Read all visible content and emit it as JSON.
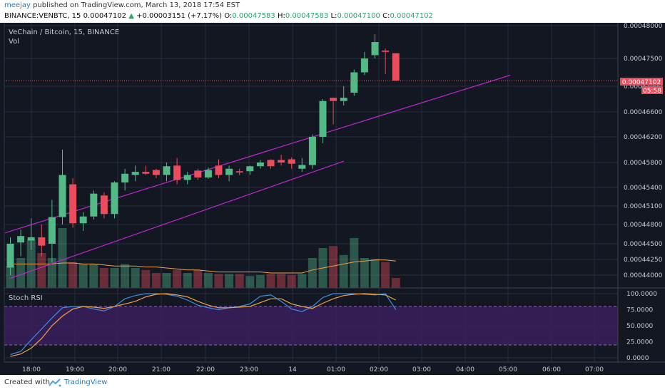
{
  "header": {
    "author": "meejay",
    "published_text": "published on TradingView.com, March 13, 2018 17:54 EST",
    "symbol_line": {
      "symbol": "BINANCE:VENBTC, 15",
      "last": "0.00047102",
      "arrow": "▲",
      "change": "+0.00003151 (+7.17%)",
      "o_label": "O:",
      "o": "0.00047583",
      "h_label": "H:",
      "h": "0.00047583",
      "l_label": "L:",
      "l": "0.00047100",
      "c_label": "C:",
      "c": "0.00047102"
    }
  },
  "chart_title": "VeChain / Bitcoin, 15, BINANCE",
  "vol_label": "Vol",
  "rsi_label": "Stoch RSI",
  "price_badge": "0.00047102",
  "time_badge": "05:58",
  "colors": {
    "bg": "#131722",
    "grid": "#262c3a",
    "up": "#53b987",
    "down": "#eb4d5c",
    "trendline": "#c026d3",
    "ma": "#f0a24a",
    "k": "#3d8fe0",
    "d": "#f0a24a",
    "rsi_band": "#3b1f5e",
    "badge": "#eb4d5c"
  },
  "chart_data": {
    "type": "candlestick",
    "price_ticks": [
      "0.00048000",
      "0.00047500",
      "0.00047000",
      "0.00046600",
      "0.00046200",
      "0.00045800",
      "0.00045400",
      "0.00045100",
      "0.00044800",
      "0.00044500",
      "0.00044250",
      "0.00044000"
    ],
    "rsi_ticks": [
      "100.0000",
      "75.0000",
      "50.0000",
      "25.0000",
      "0.0000"
    ],
    "x_ticks": [
      "18:00",
      "19:00",
      "20:00",
      "21:00",
      "22:00",
      "23:00",
      "14",
      "01:00",
      "02:00",
      "03:00",
      "04:00",
      "05:00",
      "06:00",
      "07:00"
    ],
    "candles": [
      {
        "o": 0.0004412,
        "h": 0.000446,
        "l": 0.00044,
        "c": 0.000445
      },
      {
        "o": 0.0004452,
        "h": 0.0004472,
        "l": 0.000443,
        "c": 0.0004462
      },
      {
        "o": 0.0004455,
        "h": 0.000449,
        "l": 0.000444,
        "c": 0.000446
      },
      {
        "o": 0.000446,
        "h": 0.000448,
        "l": 0.000443,
        "c": 0.0004447
      },
      {
        "o": 0.000445,
        "h": 0.000452,
        "l": 0.000442,
        "c": 0.0004492
      },
      {
        "o": 0.0004492,
        "h": 0.00046,
        "l": 0.000448,
        "c": 0.000456
      },
      {
        "o": 0.0004545,
        "h": 0.0004555,
        "l": 0.0004475,
        "c": 0.0004482
      },
      {
        "o": 0.0004482,
        "h": 0.00045,
        "l": 0.000447,
        "c": 0.0004493
      },
      {
        "o": 0.0004493,
        "h": 0.0004535,
        "l": 0.0004488,
        "c": 0.000453
      },
      {
        "o": 0.0004527,
        "h": 0.0004532,
        "l": 0.000449,
        "c": 0.0004497
      },
      {
        "o": 0.0004497,
        "h": 0.000455,
        "l": 0.000449,
        "c": 0.0004548
      },
      {
        "o": 0.0004548,
        "h": 0.000457,
        "l": 0.0004535,
        "c": 0.0004562
      },
      {
        "o": 0.000456,
        "h": 0.0004575,
        "l": 0.000455,
        "c": 0.0004565
      },
      {
        "o": 0.0004565,
        "h": 0.0004575,
        "l": 0.000456,
        "c": 0.0004562
      },
      {
        "o": 0.0004568,
        "h": 0.000457,
        "l": 0.0004555,
        "c": 0.000456
      },
      {
        "o": 0.000456,
        "h": 0.000458,
        "l": 0.000455,
        "c": 0.0004574
      },
      {
        "o": 0.0004575,
        "h": 0.0004587,
        "l": 0.0004545,
        "c": 0.0004552
      },
      {
        "o": 0.0004552,
        "h": 0.0004565,
        "l": 0.0004545,
        "c": 0.000456
      },
      {
        "o": 0.0004567,
        "h": 0.000457,
        "l": 0.0004552,
        "c": 0.0004556
      },
      {
        "o": 0.0004556,
        "h": 0.0004572,
        "l": 0.0004554,
        "c": 0.0004568
      },
      {
        "o": 0.0004575,
        "h": 0.0004585,
        "l": 0.0004555,
        "c": 0.000456
      },
      {
        "o": 0.000456,
        "h": 0.0004575,
        "l": 0.000455,
        "c": 0.000457
      },
      {
        "o": 0.0004566,
        "h": 0.000457,
        "l": 0.000456,
        "c": 0.0004564
      },
      {
        "o": 0.0004566,
        "h": 0.0004575,
        "l": 0.000456,
        "c": 0.0004574
      },
      {
        "o": 0.0004574,
        "h": 0.0004584,
        "l": 0.000457,
        "c": 0.000458
      },
      {
        "o": 0.0004584,
        "h": 0.0004585,
        "l": 0.000457,
        "c": 0.0004574
      },
      {
        "o": 0.0004584,
        "h": 0.0004592,
        "l": 0.0004575,
        "c": 0.000458
      },
      {
        "o": 0.0004585,
        "h": 0.0004588,
        "l": 0.000457,
        "c": 0.0004578
      },
      {
        "o": 0.000457,
        "h": 0.0004587,
        "l": 0.0004565,
        "c": 0.0004576
      },
      {
        "o": 0.0004576,
        "h": 0.0004624,
        "l": 0.000457,
        "c": 0.000462
      },
      {
        "o": 0.000462,
        "h": 0.000468,
        "l": 0.000461,
        "c": 0.0004677
      },
      {
        "o": 0.0004682,
        "h": 0.0004682,
        "l": 0.000464,
        "c": 0.0004677
      },
      {
        "o": 0.0004677,
        "h": 0.00047,
        "l": 0.000467,
        "c": 0.0004682
      },
      {
        "o": 0.000469,
        "h": 0.000473,
        "l": 0.0004685,
        "c": 0.0004725
      },
      {
        "o": 0.0004725,
        "h": 0.000476,
        "l": 0.000472,
        "c": 0.000475
      },
      {
        "o": 0.0004755,
        "h": 0.0004787,
        "l": 0.000475,
        "c": 0.0004775
      },
      {
        "o": 0.0004762,
        "h": 0.0004765,
        "l": 0.0004722,
        "c": 0.000476
      },
      {
        "o": 0.0004758,
        "h": 0.0004758,
        "l": 0.000471,
        "c": 0.000471
      }
    ],
    "volume": [
      22,
      30,
      48,
      35,
      30,
      60,
      26,
      24,
      24,
      20,
      20,
      24,
      20,
      18,
      15,
      15,
      18,
      15,
      18,
      15,
      14,
      14,
      14,
      12,
      13,
      14,
      14,
      13,
      14,
      30,
      40,
      42,
      33,
      50,
      30,
      29,
      26,
      10
    ],
    "ma_volume": [
      24,
      24,
      24,
      24,
      24,
      25,
      25,
      24,
      24,
      23,
      22,
      22,
      22,
      21,
      21,
      20,
      19,
      18,
      18,
      17,
      16,
      16,
      16,
      16,
      16,
      15,
      15,
      15,
      15,
      18,
      20,
      22,
      24,
      26,
      27,
      28,
      28,
      27
    ],
    "stoch_k": [
      5,
      10,
      28,
      45,
      62,
      78,
      80,
      80,
      76,
      73,
      80,
      92,
      97,
      100,
      100,
      99,
      96,
      90,
      82,
      78,
      75,
      78,
      80,
      84,
      96,
      98,
      88,
      76,
      72,
      80,
      94,
      100,
      100,
      100,
      99,
      98,
      100,
      75
    ],
    "stoch_d": [
      2,
      6,
      15,
      30,
      50,
      65,
      76,
      80,
      79,
      77,
      80,
      84,
      88,
      95,
      99,
      100,
      98,
      95,
      88,
      82,
      78,
      78,
      79,
      80,
      86,
      92,
      92,
      84,
      80,
      77,
      85,
      92,
      97,
      99,
      100,
      99,
      98,
      90
    ],
    "trendlines": [
      {
        "from": {
          "bar": -0.5,
          "price": 0.0004467
        },
        "to": {
          "bar": 48,
          "price": 0.000472
        }
      },
      {
        "from": {
          "bar": 0,
          "price": 0.0004395
        },
        "to": {
          "bar": 32,
          "price": 0.0004582
        }
      }
    ],
    "current_price": 0.00047102
  },
  "footer": {
    "created": "Created with",
    "brand": "TradingView"
  }
}
